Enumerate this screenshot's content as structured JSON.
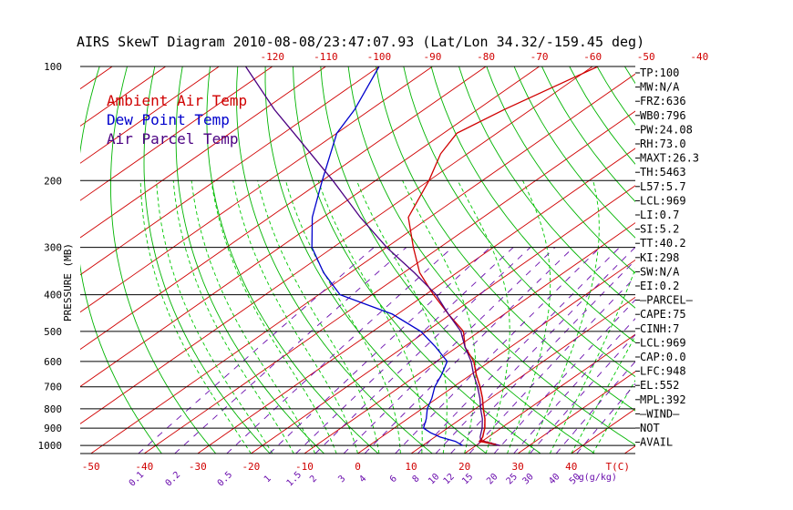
{
  "chart_data": {
    "type": "line",
    "title": "AIRS SkewT Diagram 2010-08-08/23:47:07.93 (Lat/Lon 34.32/-159.45 deg)",
    "ylabel": "PRESSURE (MB)",
    "xlabel": "T(C)",
    "mixing_ratio_label": "g(g/kg)",
    "y_scale": "log",
    "ylim": [
      1050,
      100
    ],
    "xlim_bottom": [
      -52,
      52
    ],
    "pressure_ticks": [
      100,
      200,
      300,
      400,
      500,
      600,
      700,
      800,
      900,
      1000
    ],
    "top_temp_ticks": [
      -120,
      -110,
      -100,
      -90,
      -80,
      -70,
      -60,
      -50,
      -40
    ],
    "bottom_temp_ticks": [
      -50,
      -40,
      -30,
      -20,
      -10,
      0,
      10,
      20,
      30,
      40
    ],
    "mixing_ratio_ticks": [
      "0.1",
      "0.2",
      "0.5",
      "1",
      "1.5",
      "2",
      "3",
      "4",
      "6",
      "8",
      "10",
      "12",
      "15",
      "20",
      "25",
      "30",
      "40",
      "50"
    ],
    "legend": [
      {
        "label": "Ambient Air Temp",
        "color": "#d00000"
      },
      {
        "label": "Dew Point Temp",
        "color": "#0000cc"
      },
      {
        "label": "Air Parcel Temp",
        "color": "#4b0082"
      }
    ],
    "series": [
      {
        "name": "Ambient Air Temp",
        "color": "#d00000",
        "p": [
          1000,
          975,
          950,
          925,
          900,
          850,
          800,
          750,
          700,
          650,
          600,
          550,
          500,
          450,
          400,
          350,
          300,
          250,
          200,
          170,
          150,
          130,
          100
        ],
        "t": [
          24.5,
          19.5,
          19.0,
          18.0,
          17.0,
          14.5,
          11.5,
          8.5,
          5.0,
          1.0,
          -3.0,
          -8.5,
          -13.0,
          -20.5,
          -28.5,
          -37.0,
          -45.0,
          -54.0,
          -60.0,
          -65.0,
          -67.5,
          -65.0,
          -59.0
        ]
      },
      {
        "name": "Dew Point Temp",
        "color": "#0000cc",
        "p": [
          1000,
          975,
          950,
          925,
          900,
          850,
          800,
          750,
          700,
          650,
          600,
          550,
          500,
          450,
          400,
          350,
          300,
          250,
          200,
          150,
          130,
          100
        ],
        "t": [
          17.5,
          15.0,
          11.0,
          8.0,
          5.5,
          3.5,
          1.0,
          -1.0,
          -3.5,
          -5.5,
          -8.0,
          -14.0,
          -21.0,
          -31.0,
          -46.0,
          -55.0,
          -64.0,
          -72.0,
          -80.0,
          -90.0,
          -93.0,
          -100.0
        ]
      },
      {
        "name": "Air Parcel Temp",
        "color": "#4b0082",
        "p": [
          1000,
          975,
          969,
          950,
          925,
          900,
          850,
          800,
          750,
          700,
          650,
          600,
          550,
          500,
          450,
          400,
          350,
          300,
          250,
          200,
          150,
          130,
          100
        ],
        "t": [
          24.5,
          20.5,
          19.5,
          18.5,
          17.5,
          16.5,
          14.0,
          11.0,
          8.0,
          4.5,
          0.5,
          -3.5,
          -8.5,
          -13.5,
          -20.5,
          -28.0,
          -38.0,
          -50.0,
          -63.0,
          -78.0,
          -98.0,
          -108.0,
          -125.0
        ]
      }
    ],
    "wind_barbs": "N/A"
  },
  "indices": [
    "TP:100",
    "MW:N/A",
    "FRZ:636",
    "WB0:796",
    "PW:24.08",
    "RH:73.0",
    "MAXT:26.3",
    "TH:5463",
    "L57:5.7",
    "LCL:969",
    "LI:0.7",
    "SI:5.2",
    "TT:40.2",
    "KI:298",
    "SW:N/A",
    "EI:0.2",
    "—PARCEL—",
    "CAPE:75",
    "CINH:7",
    "LCL:969",
    "CAP:0.0",
    "LFC:948",
    "EL:552",
    "MPL:392",
    "—WIND—",
    "NOT",
    "AVAIL"
  ],
  "colors": {
    "isotherm": "#d00000",
    "dry_adiabat": "#00b400",
    "moist_adiabat": "#00c800",
    "mixing_ratio": "#6a0dad",
    "isobar": "#000000"
  }
}
